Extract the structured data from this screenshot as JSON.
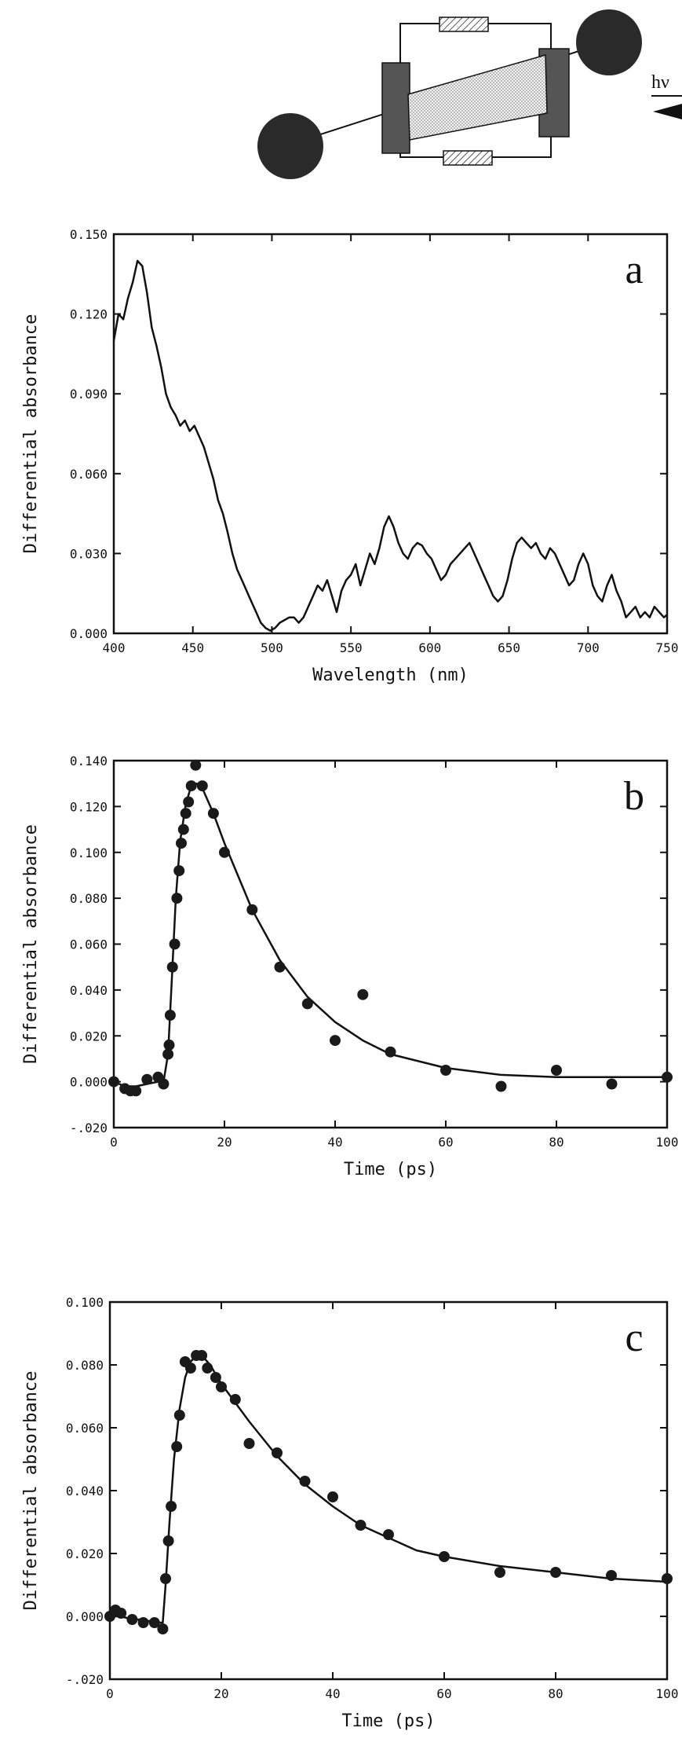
{
  "diagram": {
    "light_label": "hν",
    "colors": {
      "sphere": "#2a2a2a",
      "block": "#555555",
      "ink": "#111111"
    }
  },
  "chart_data": [
    {
      "type": "line",
      "panel_label": "a",
      "title": "",
      "xlabel": "Wavelength (nm)",
      "ylabel": "Differential absorbance",
      "xlim": [
        400,
        750
      ],
      "ylim": [
        0.0,
        0.15
      ],
      "x_ticks": [
        400,
        450,
        500,
        550,
        600,
        650,
        700,
        750
      ],
      "x_tick_labels": [
        "400",
        "450",
        "500",
        "550",
        "600",
        "650",
        "700",
        "750"
      ],
      "y_ticks": [
        0.0,
        0.03,
        0.06,
        0.09,
        0.12,
        0.15
      ],
      "y_tick_labels": [
        "0.000",
        "0.030",
        "0.060",
        "0.090",
        "0.120",
        "0.150"
      ],
      "grid": false,
      "series": [
        {
          "x": [
            400,
            403,
            406,
            409,
            412,
            415,
            418,
            421,
            424,
            427,
            430,
            433,
            436,
            439,
            442,
            445,
            448,
            451,
            454,
            457,
            460,
            463,
            466,
            469,
            472,
            475,
            478,
            481,
            484,
            487,
            490,
            493,
            496,
            499,
            502,
            505,
            508,
            511,
            514,
            517,
            520,
            523,
            526,
            529,
            532,
            535,
            538,
            541,
            544,
            547,
            550,
            553,
            556,
            559,
            562,
            565,
            568,
            571,
            574,
            577,
            580,
            583,
            586,
            589,
            592,
            595,
            598,
            601,
            604,
            607,
            610,
            613,
            616,
            619,
            622,
            625,
            628,
            631,
            634,
            637,
            640,
            643,
            646,
            649,
            652,
            655,
            658,
            661,
            664,
            667,
            670,
            673,
            676,
            679,
            682,
            685,
            688,
            691,
            694,
            697,
            700,
            703,
            706,
            709,
            712,
            715,
            718,
            721,
            724,
            727,
            730,
            733,
            736,
            739,
            742,
            745,
            748,
            750
          ],
          "y": [
            0.11,
            0.12,
            0.118,
            0.126,
            0.132,
            0.14,
            0.138,
            0.128,
            0.115,
            0.108,
            0.1,
            0.09,
            0.085,
            0.082,
            0.078,
            0.08,
            0.076,
            0.078,
            0.074,
            0.07,
            0.064,
            0.058,
            0.05,
            0.045,
            0.038,
            0.03,
            0.024,
            0.02,
            0.016,
            0.012,
            0.008,
            0.004,
            0.002,
            0.001,
            0.002,
            0.004,
            0.005,
            0.006,
            0.006,
            0.004,
            0.006,
            0.01,
            0.014,
            0.018,
            0.016,
            0.02,
            0.014,
            0.008,
            0.016,
            0.02,
            0.022,
            0.026,
            0.018,
            0.024,
            0.03,
            0.026,
            0.032,
            0.04,
            0.044,
            0.04,
            0.034,
            0.03,
            0.028,
            0.032,
            0.034,
            0.033,
            0.03,
            0.028,
            0.024,
            0.02,
            0.022,
            0.026,
            0.028,
            0.03,
            0.032,
            0.034,
            0.03,
            0.026,
            0.022,
            0.018,
            0.014,
            0.012,
            0.014,
            0.02,
            0.028,
            0.034,
            0.036,
            0.034,
            0.032,
            0.034,
            0.03,
            0.028,
            0.032,
            0.03,
            0.026,
            0.022,
            0.018,
            0.02,
            0.026,
            0.03,
            0.026,
            0.018,
            0.014,
            0.012,
            0.018,
            0.022,
            0.016,
            0.012,
            0.006,
            0.008,
            0.01,
            0.006,
            0.008,
            0.006,
            0.01,
            0.008,
            0.006,
            0.007
          ]
        }
      ]
    },
    {
      "type": "scatter",
      "panel_label": "b",
      "title": "",
      "xlabel": "Time (ps)",
      "ylabel": "Differential absorbance",
      "xlim": [
        0,
        100
      ],
      "ylim": [
        -0.02,
        0.14
      ],
      "x_ticks": [
        0,
        20,
        40,
        60,
        80,
        100
      ],
      "x_tick_labels": [
        "0",
        "20",
        "40",
        "60",
        "80",
        "100"
      ],
      "y_ticks": [
        -0.02,
        0.0,
        0.02,
        0.04,
        0.06,
        0.08,
        0.1,
        0.12,
        0.14
      ],
      "y_tick_labels": [
        "-.020",
        "0.000",
        "0.020",
        "0.040",
        "0.060",
        "0.080",
        "0.100",
        "0.120",
        "0.140"
      ],
      "grid": false,
      "series": [
        {
          "points": [
            [
              0,
              0.0
            ],
            [
              2,
              -0.003
            ],
            [
              3,
              -0.004
            ],
            [
              4,
              -0.004
            ],
            [
              6,
              0.001
            ],
            [
              8,
              0.002
            ],
            [
              9,
              -0.001
            ],
            [
              9.8,
              0.012
            ],
            [
              10,
              0.016
            ],
            [
              10.2,
              0.029
            ],
            [
              10.6,
              0.05
            ],
            [
              11,
              0.06
            ],
            [
              11.4,
              0.08
            ],
            [
              11.8,
              0.092
            ],
            [
              12.2,
              0.104
            ],
            [
              12.6,
              0.11
            ],
            [
              13,
              0.117
            ],
            [
              13.5,
              0.122
            ],
            [
              14,
              0.129
            ],
            [
              14.8,
              0.138
            ],
            [
              16,
              0.129
            ],
            [
              18,
              0.117
            ],
            [
              20,
              0.1
            ],
            [
              25,
              0.075
            ],
            [
              30,
              0.05
            ],
            [
              35,
              0.034
            ],
            [
              40,
              0.018
            ],
            [
              45,
              0.038
            ],
            [
              50,
              0.013
            ],
            [
              60,
              0.005
            ],
            [
              70,
              -0.002
            ],
            [
              80,
              0.005
            ],
            [
              90,
              -0.001
            ],
            [
              100,
              0.002
            ]
          ]
        },
        {
          "fit": [
            [
              0,
              0.0
            ],
            [
              2,
              -0.002
            ],
            [
              4,
              -0.002
            ],
            [
              6,
              -0.001
            ],
            [
              8,
              0.0
            ],
            [
              9,
              0.0
            ],
            [
              9.8,
              0.012
            ],
            [
              10.5,
              0.045
            ],
            [
              11.2,
              0.08
            ],
            [
              12,
              0.105
            ],
            [
              13,
              0.121
            ],
            [
              14,
              0.129
            ],
            [
              15,
              0.13
            ],
            [
              16,
              0.128
            ],
            [
              18,
              0.117
            ],
            [
              20,
              0.104
            ],
            [
              25,
              0.075
            ],
            [
              30,
              0.053
            ],
            [
              35,
              0.037
            ],
            [
              40,
              0.026
            ],
            [
              45,
              0.018
            ],
            [
              50,
              0.012
            ],
            [
              60,
              0.006
            ],
            [
              70,
              0.003
            ],
            [
              80,
              0.002
            ],
            [
              90,
              0.002
            ],
            [
              100,
              0.002
            ]
          ]
        }
      ]
    },
    {
      "type": "scatter",
      "panel_label": "c",
      "title": "",
      "xlabel": "Time (ps)",
      "ylabel": "Differential absorbance",
      "xlim": [
        0,
        100
      ],
      "ylim": [
        -0.02,
        0.1
      ],
      "x_ticks": [
        0,
        20,
        40,
        60,
        80,
        100
      ],
      "x_tick_labels": [
        "0",
        "20",
        "40",
        "60",
        "80",
        "100"
      ],
      "y_ticks": [
        -0.02,
        0.0,
        0.02,
        0.04,
        0.06,
        0.08,
        0.1
      ],
      "y_tick_labels": [
        "-.020",
        "0.000",
        "0.020",
        "0.040",
        "0.060",
        "0.080",
        "0.100"
      ],
      "grid": false,
      "series": [
        {
          "points": [
            [
              0,
              0.0
            ],
            [
              1,
              0.002
            ],
            [
              2,
              0.001
            ],
            [
              4,
              -0.001
            ],
            [
              6,
              -0.002
            ],
            [
              8,
              -0.002
            ],
            [
              9.5,
              -0.004
            ],
            [
              10,
              0.012
            ],
            [
              10.5,
              0.024
            ],
            [
              11,
              0.035
            ],
            [
              12,
              0.054
            ],
            [
              12.5,
              0.064
            ],
            [
              13.5,
              0.081
            ],
            [
              14.5,
              0.079
            ],
            [
              15.5,
              0.083
            ],
            [
              16.5,
              0.083
            ],
            [
              17.5,
              0.079
            ],
            [
              19,
              0.076
            ],
            [
              20,
              0.073
            ],
            [
              22.5,
              0.069
            ],
            [
              25,
              0.055
            ],
            [
              30,
              0.052
            ],
            [
              35,
              0.043
            ],
            [
              40,
              0.038
            ],
            [
              45,
              0.029
            ],
            [
              50,
              0.026
            ],
            [
              60,
              0.019
            ],
            [
              70,
              0.014
            ],
            [
              80,
              0.014
            ],
            [
              90,
              0.013
            ],
            [
              100,
              0.012
            ]
          ]
        },
        {
          "fit": [
            [
              0,
              0.0
            ],
            [
              2,
              0.0
            ],
            [
              4,
              -0.001
            ],
            [
              6,
              -0.001
            ],
            [
              8,
              -0.002
            ],
            [
              9.5,
              -0.002
            ],
            [
              10,
              0.01
            ],
            [
              10.7,
              0.03
            ],
            [
              11.5,
              0.05
            ],
            [
              12.5,
              0.066
            ],
            [
              13.5,
              0.076
            ],
            [
              14.5,
              0.081
            ],
            [
              15.5,
              0.083
            ],
            [
              16.5,
              0.083
            ],
            [
              18,
              0.08
            ],
            [
              20,
              0.074
            ],
            [
              25,
              0.062
            ],
            [
              30,
              0.051
            ],
            [
              35,
              0.042
            ],
            [
              40,
              0.035
            ],
            [
              45,
              0.029
            ],
            [
              50,
              0.025
            ],
            [
              55,
              0.021
            ],
            [
              60,
              0.019
            ],
            [
              70,
              0.016
            ],
            [
              80,
              0.014
            ],
            [
              90,
              0.012
            ],
            [
              100,
              0.011
            ]
          ]
        }
      ]
    }
  ]
}
